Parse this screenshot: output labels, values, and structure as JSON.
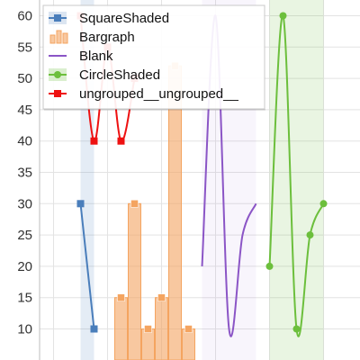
{
  "chart_data": {
    "type": "line",
    "title": "",
    "xlabel": "",
    "ylabel": "",
    "ylim": [
      7,
      62
    ],
    "y_ticks": [
      "10",
      "15",
      "20",
      "25",
      "30",
      "35",
      "40",
      "45",
      "50",
      "55",
      "60"
    ],
    "grid": true,
    "legend_position": "top-left",
    "x_slots": 23,
    "series": [
      {
        "name": "SquareShaded",
        "kind": "line-square-shaded",
        "color": "#4a7ebb",
        "points": [
          [
            2,
            30
          ],
          [
            3,
            10
          ]
        ],
        "band": [
          2,
          3
        ]
      },
      {
        "name": "Bargraph",
        "kind": "bar",
        "color": "#f4a460",
        "points": [
          [
            5,
            15
          ],
          [
            6,
            30
          ],
          [
            7,
            10
          ],
          [
            8,
            15
          ],
          [
            9,
            52
          ],
          [
            10,
            10
          ]
        ]
      },
      {
        "name": "Blank",
        "kind": "smooth-line",
        "color": "#8b55c6",
        "points": [
          [
            11,
            20
          ],
          [
            12,
            60
          ],
          [
            13,
            10
          ],
          [
            14,
            25
          ],
          [
            15,
            30
          ]
        ],
        "band": [
          11,
          15
        ]
      },
      {
        "name": "CircleShaded",
        "kind": "smooth-line-circle-shaded",
        "color": "#6cbf3c",
        "points": [
          [
            16,
            20
          ],
          [
            17,
            60
          ],
          [
            18,
            10
          ],
          [
            19,
            25
          ],
          [
            20,
            30
          ]
        ],
        "band": [
          16,
          20
        ]
      },
      {
        "name": "ungrouped__ungrouped__",
        "kind": "smooth-line-square",
        "color": "#ee1111",
        "points": [
          [
            2,
            60
          ],
          [
            3,
            40
          ],
          [
            4,
            55
          ],
          [
            5,
            40
          ],
          [
            6,
            50
          ]
        ]
      }
    ]
  }
}
